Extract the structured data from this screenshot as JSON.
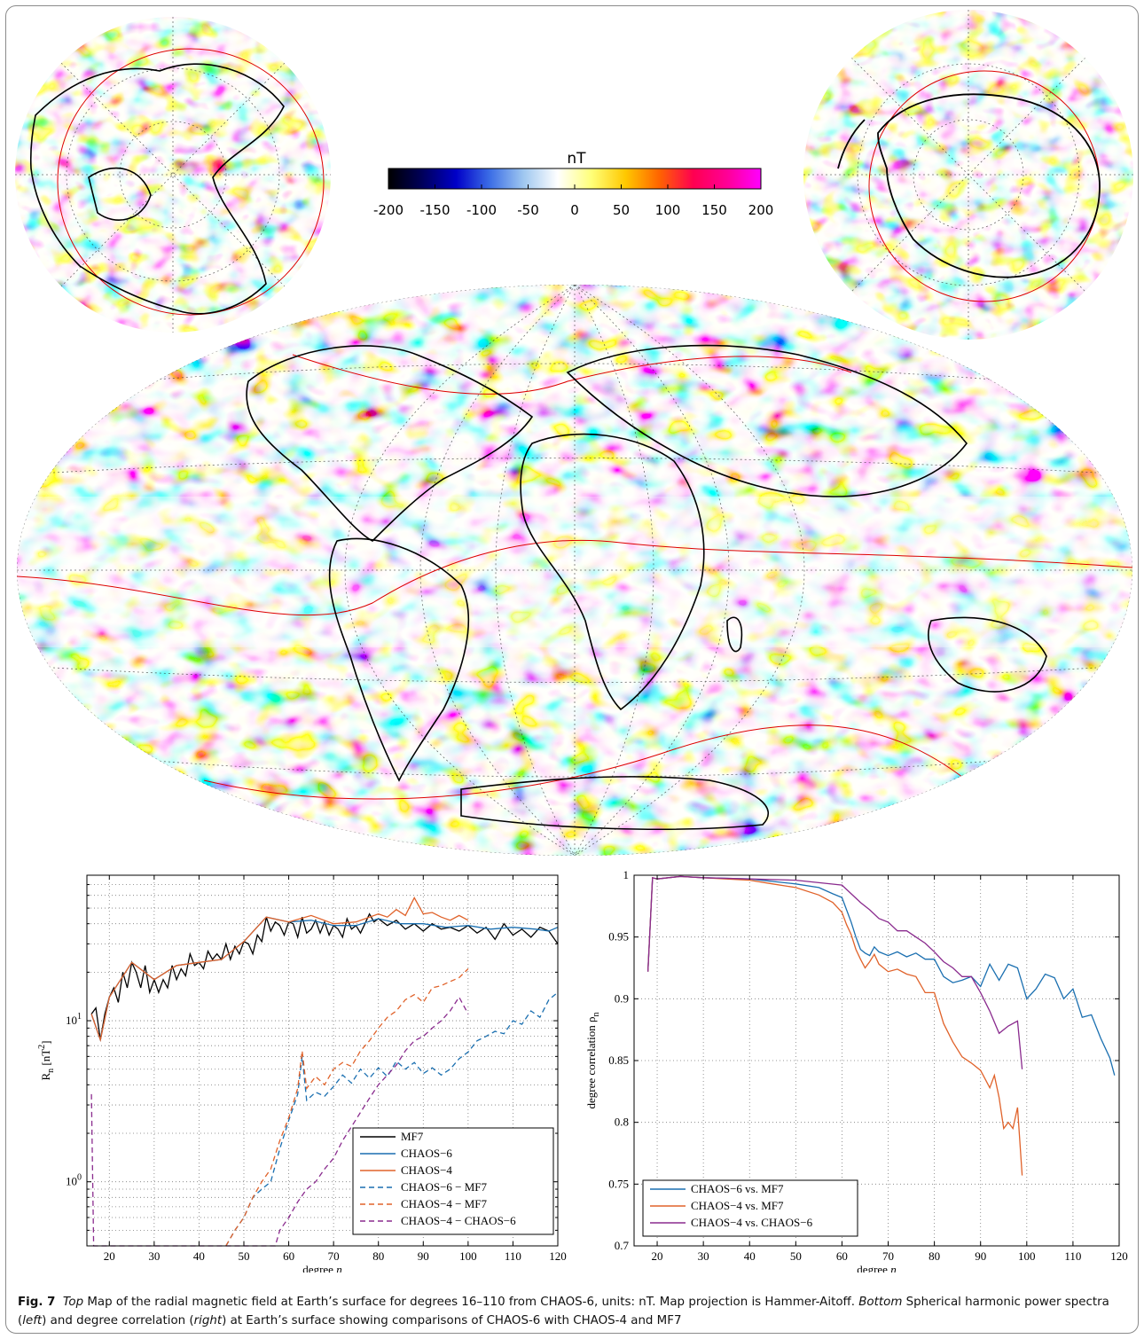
{
  "figure": {
    "label": "Fig. 7",
    "caption_parts": [
      {
        "text": "Top",
        "style": "italic"
      },
      {
        "text": " Map of the radial magnetic field at Earth’s surface for degrees 16–110 from CHAOS-6, units: nT. Map projection is Hammer-Aitoff. ",
        "style": "normal"
      },
      {
        "text": "Bottom",
        "style": "italic"
      },
      {
        "text": " Spherical harmonic power spectra (",
        "style": "normal"
      },
      {
        "text": "left",
        "style": "italic"
      },
      {
        "text": ") and degree correlation (",
        "style": "normal"
      },
      {
        "text": "right",
        "style": "italic"
      },
      {
        "text": ") at Earth’s surface showing comparisons of CHAOS-6 with CHAOS-4 and MF7",
        "style": "normal"
      }
    ]
  },
  "colorbar": {
    "unit": "nT",
    "ticks": [
      "-200",
      "-150",
      "-100",
      "-50",
      "0",
      "50",
      "100",
      "150",
      "200"
    ],
    "colors": [
      "#000000",
      "#00005a",
      "#0000c8",
      "#3c6ee6",
      "#a0c8f0",
      "#ffffff",
      "#ffff78",
      "#ffc800",
      "#ff6400",
      "#ff0050",
      "#ff0096",
      "#ff00ff"
    ]
  },
  "chart_data": [
    {
      "type": "line",
      "xlabel": "degree n",
      "ylabel": "Rn [nT2]",
      "log_y": true,
      "xlim": [
        15,
        120
      ],
      "ylim": [
        0.4,
        80
      ],
      "xticks": [
        "20",
        "30",
        "40",
        "50",
        "60",
        "70",
        "80",
        "90",
        "100",
        "110",
        "120"
      ],
      "yticks": [
        {
          "value": 10,
          "label": "10",
          "sup": "1"
        },
        {
          "value": 1,
          "label": "10",
          "sup": "0"
        }
      ],
      "legend_position": "bottom-right",
      "series": [
        {
          "name": "MF7",
          "color": "#000000",
          "dash": "solid",
          "x": [
            16,
            17,
            18,
            19,
            20,
            21,
            22,
            23,
            24,
            25,
            26,
            27,
            28,
            29,
            30,
            31,
            32,
            33,
            34,
            35,
            36,
            37,
            38,
            39,
            40,
            41,
            42,
            43,
            44,
            45,
            46,
            47,
            48,
            49,
            50,
            51,
            52,
            53,
            54,
            55,
            56,
            57,
            58,
            59,
            60,
            61,
            62,
            63,
            64,
            65,
            66,
            67,
            68,
            69,
            70,
            71,
            72,
            73,
            74,
            75,
            76,
            77,
            78,
            79,
            80,
            82,
            84,
            86,
            88,
            90,
            92,
            94,
            96,
            98,
            100,
            102,
            104,
            106,
            108,
            110,
            112,
            114,
            116,
            118,
            120
          ],
          "y": [
            11,
            12,
            7.6,
            11,
            14,
            16,
            13,
            20,
            16,
            23,
            20,
            16,
            22,
            15,
            18,
            15,
            18,
            16,
            22,
            18,
            21,
            19,
            26,
            22,
            23,
            21,
            27,
            24,
            26,
            24,
            30,
            24,
            29,
            26,
            31,
            30,
            26,
            34,
            31,
            44,
            36,
            41,
            39,
            34,
            41,
            40,
            33,
            44,
            35,
            37,
            42,
            35,
            41,
            34,
            39,
            37,
            33,
            43,
            37,
            39,
            35,
            40,
            46,
            41,
            43,
            39,
            42,
            37,
            40,
            36,
            40,
            37,
            38,
            36,
            39,
            35,
            38,
            32,
            40,
            34,
            37,
            33,
            38,
            36,
            30
          ]
        },
        {
          "name": "CHAOS−6",
          "color": "#1a6fb0",
          "dash": "solid",
          "x": [
            16,
            18,
            20,
            25,
            30,
            35,
            40,
            45,
            50,
            55,
            60,
            65,
            70,
            75,
            80,
            85,
            90,
            95,
            100,
            105,
            110,
            115,
            118,
            120
          ],
          "y": [
            11,
            7.6,
            14,
            23,
            18,
            22,
            23,
            24,
            31,
            44,
            41,
            42,
            39,
            39,
            43,
            40,
            40,
            38,
            39,
            37,
            38,
            37,
            36,
            38
          ]
        },
        {
          "name": "CHAOS−4",
          "color": "#e0622a",
          "dash": "solid",
          "x": [
            16,
            18,
            20,
            25,
            30,
            35,
            40,
            45,
            50,
            55,
            60,
            65,
            70,
            75,
            80,
            82,
            84,
            86,
            88,
            90,
            92,
            94,
            96,
            98,
            100
          ],
          "y": [
            11,
            7.6,
            14,
            23,
            18,
            22,
            23,
            24,
            31,
            44,
            41,
            45,
            40,
            41,
            46,
            44,
            49,
            45,
            58,
            46,
            47,
            44,
            42,
            45,
            42
          ]
        },
        {
          "name": "CHAOS−6 − MF7",
          "color": "#1a6fb0",
          "dash": "dashed",
          "x": [
            46,
            48,
            50,
            52,
            54,
            56,
            58,
            60,
            62,
            63,
            64,
            66,
            68,
            70,
            72,
            74,
            76,
            78,
            80,
            82,
            84,
            86,
            88,
            90,
            92,
            94,
            96,
            98,
            100,
            102,
            104,
            106,
            108,
            110,
            112,
            114,
            116,
            118,
            120
          ],
          "y": [
            0.4,
            0.5,
            0.6,
            0.8,
            0.9,
            1.0,
            1.6,
            2.4,
            3.5,
            6.0,
            3.2,
            3.6,
            3.4,
            3.9,
            4.6,
            4.1,
            5.0,
            4.4,
            5.1,
            4.5,
            5.6,
            5.0,
            5.5,
            4.7,
            5.1,
            4.6,
            5.0,
            5.8,
            6.4,
            7.5,
            8.0,
            8.6,
            8.3,
            10.0,
            9.5,
            11.5,
            10.5,
            13.5,
            15
          ]
        },
        {
          "name": "CHAOS−4 − MF7",
          "color": "#e0622a",
          "dash": "dashed",
          "x": [
            46,
            48,
            50,
            52,
            54,
            56,
            58,
            60,
            62,
            63,
            64,
            66,
            68,
            70,
            72,
            74,
            76,
            78,
            80,
            82,
            84,
            86,
            88,
            90,
            92,
            94,
            96,
            98,
            100
          ],
          "y": [
            0.4,
            0.5,
            0.6,
            0.8,
            1.0,
            1.2,
            1.8,
            2.5,
            3.8,
            6.5,
            3.8,
            4.5,
            4.0,
            5.0,
            5.5,
            5.2,
            6.5,
            7.5,
            9.0,
            10.5,
            11.5,
            13.5,
            14.5,
            13.0,
            16.0,
            16.5,
            17.5,
            18.5,
            21.0
          ]
        },
        {
          "name": "CHAOS−4 − CHAOS−6",
          "color": "#8a2b8e",
          "dash": "dashed",
          "x": [
            16,
            16.5,
            57,
            58,
            60,
            62,
            64,
            66,
            68,
            70,
            72,
            74,
            76,
            78,
            80,
            82,
            84,
            86,
            88,
            90,
            92,
            94,
            96,
            98,
            100
          ],
          "y": [
            3.5,
            0.4,
            0.4,
            0.5,
            0.6,
            0.75,
            0.9,
            1.0,
            1.2,
            1.4,
            1.8,
            2.2,
            2.7,
            3.3,
            4.0,
            4.6,
            5.3,
            6.5,
            7.5,
            8.0,
            9.0,
            10.0,
            11.5,
            14.0,
            11.0
          ]
        }
      ]
    },
    {
      "type": "line",
      "xlabel": "degree n",
      "ylabel": "degree correlation ρn",
      "log_y": false,
      "xlim": [
        15,
        120
      ],
      "ylim": [
        0.7,
        1.0
      ],
      "xticks": [
        "20",
        "30",
        "40",
        "50",
        "60",
        "70",
        "80",
        "90",
        "100",
        "110",
        "120"
      ],
      "yticks": [
        "0.7",
        "0.75",
        "0.8",
        "0.85",
        "0.9",
        "0.95",
        "1"
      ],
      "legend_position": "bottom-left",
      "series": [
        {
          "name": "CHAOS−6 vs. MF7",
          "color": "#1a6fb0",
          "dash": "solid",
          "x": [
            18,
            19,
            20,
            25,
            30,
            40,
            45,
            50,
            55,
            58,
            60,
            61,
            62,
            63,
            64,
            65,
            66,
            67,
            68,
            70,
            72,
            74,
            76,
            78,
            80,
            82,
            84,
            86,
            88,
            90,
            92,
            94,
            96,
            98,
            100,
            102,
            104,
            106,
            108,
            110,
            112,
            114,
            116,
            118,
            119
          ],
          "y": [
            0.922,
            0.998,
            0.997,
            0.999,
            0.998,
            0.997,
            0.995,
            0.993,
            0.99,
            0.985,
            0.982,
            0.972,
            0.962,
            0.95,
            0.94,
            0.937,
            0.935,
            0.942,
            0.938,
            0.935,
            0.938,
            0.934,
            0.937,
            0.932,
            0.932,
            0.918,
            0.913,
            0.915,
            0.918,
            0.91,
            0.928,
            0.915,
            0.928,
            0.925,
            0.9,
            0.908,
            0.92,
            0.917,
            0.9,
            0.908,
            0.885,
            0.887,
            0.868,
            0.852,
            0.838
          ]
        },
        {
          "name": "CHAOS−4 vs. MF7",
          "color": "#e0622a",
          "dash": "solid",
          "x": [
            18,
            19,
            20,
            25,
            30,
            40,
            45,
            50,
            55,
            58,
            60,
            61,
            62,
            63,
            64,
            65,
            66,
            67,
            68,
            70,
            72,
            74,
            76,
            78,
            80,
            82,
            84,
            86,
            88,
            90,
            92,
            93,
            94,
            95,
            96,
            97,
            98,
            99
          ],
          "y": [
            0.922,
            0.998,
            0.997,
            0.999,
            0.998,
            0.996,
            0.993,
            0.99,
            0.984,
            0.978,
            0.97,
            0.96,
            0.952,
            0.94,
            0.932,
            0.925,
            0.93,
            0.936,
            0.928,
            0.922,
            0.924,
            0.92,
            0.918,
            0.905,
            0.905,
            0.88,
            0.865,
            0.853,
            0.848,
            0.842,
            0.828,
            0.838,
            0.82,
            0.795,
            0.8,
            0.795,
            0.812,
            0.757
          ]
        },
        {
          "name": "CHAOS−4 vs. CHAOS−6",
          "color": "#8a2b8e",
          "dash": "solid",
          "x": [
            18,
            19,
            20,
            25,
            30,
            40,
            50,
            55,
            60,
            62,
            64,
            66,
            68,
            70,
            72,
            74,
            76,
            78,
            80,
            82,
            84,
            86,
            88,
            90,
            92,
            94,
            96,
            98,
            99
          ],
          "y": [
            0.922,
            0.998,
            0.997,
            0.999,
            0.998,
            0.997,
            0.996,
            0.994,
            0.992,
            0.985,
            0.978,
            0.972,
            0.965,
            0.962,
            0.955,
            0.955,
            0.95,
            0.945,
            0.938,
            0.93,
            0.925,
            0.918,
            0.918,
            0.905,
            0.89,
            0.872,
            0.878,
            0.882,
            0.843
          ]
        }
      ]
    }
  ]
}
